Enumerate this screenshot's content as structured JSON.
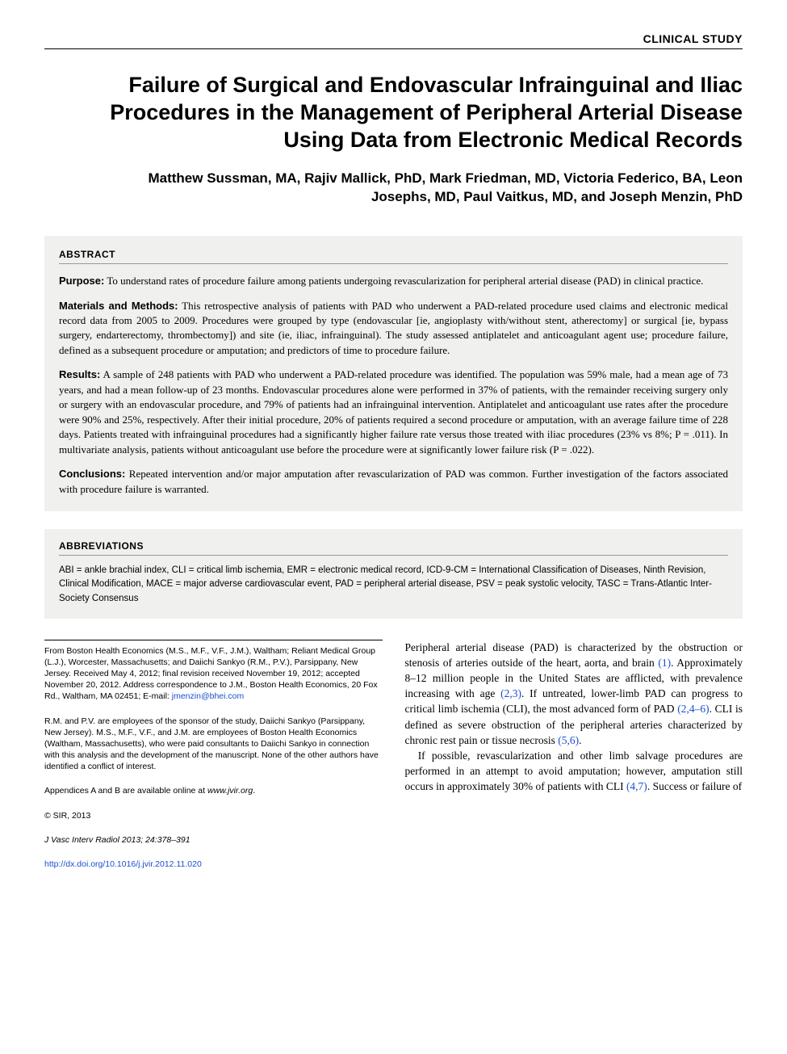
{
  "section_label": "CLINICAL STUDY",
  "title": "Failure of Surgical and Endovascular Infrainguinal and Iliac Procedures in the Management of Peripheral Arterial Disease Using Data from Electronic Medical Records",
  "authors": "Matthew Sussman, MA, Rajiv Mallick, PhD, Mark Friedman, MD, Victoria Federico, BA, Leon Josephs, MD, Paul Vaitkus, MD, and Joseph Menzin, PhD",
  "abstract": {
    "header": "ABSTRACT",
    "sections": [
      {
        "label": "Purpose:",
        "text": "To understand rates of procedure failure among patients undergoing revascularization for peripheral arterial disease (PAD) in clinical practice."
      },
      {
        "label": "Materials and Methods:",
        "text": "This retrospective analysis of patients with PAD who underwent a PAD-related procedure used claims and electronic medical record data from 2005 to 2009. Procedures were grouped by type (endovascular [ie, angioplasty with/without stent, atherectomy] or surgical [ie, bypass surgery, endarterectomy, thrombectomy]) and site (ie, iliac, infrainguinal). The study assessed antiplatelet and anticoagulant agent use; procedure failure, defined as a subsequent procedure or amputation; and predictors of time to procedure failure."
      },
      {
        "label": "Results:",
        "text": "A sample of 248 patients with PAD who underwent a PAD-related procedure was identified. The population was 59% male, had a mean age of 73 years, and had a mean follow-up of 23 months. Endovascular procedures alone were performed in 37% of patients, with the remainder receiving surgery only or surgery with an endovascular procedure, and 79% of patients had an infrainguinal intervention. Antiplatelet and anticoagulant use rates after the procedure were 90% and 25%, respectively. After their initial procedure, 20% of patients required a second procedure or amputation, with an average failure time of 228 days. Patients treated with infrainguinal procedures had a significantly higher failure rate versus those treated with iliac procedures (23% vs 8%; P = .011). In multivariate analysis, patients without anticoagulant use before the procedure were at significantly lower failure risk (P = .022)."
      },
      {
        "label": "Conclusions:",
        "text": "Repeated intervention and/or major amputation after revascularization of PAD was common. Further investigation of the factors associated with procedure failure is warranted."
      }
    ]
  },
  "abbreviations": {
    "header": "ABBREVIATIONS",
    "text": "ABI = ankle brachial index, CLI = critical limb ischemia, EMR = electronic medical record, ICD-9-CM = International Classification of Diseases, Ninth Revision, Clinical Modification, MACE = major adverse cardiovascular event, PAD = peripheral arterial disease, PSV = peak systolic velocity, TASC = Trans-Atlantic Inter-Society Consensus"
  },
  "footnotes": {
    "affiliation": "From Boston Health Economics (M.S., M.F., V.F., J.M.), Waltham; Reliant Medical Group (L.J.), Worcester, Massachusetts; and Daiichi Sankyo (R.M., P.V.), Parsippany, New Jersey. Received May 4, 2012; final revision received November 19, 2012; accepted November 20, 2012. Address correspondence to J.M., Boston Health Economics, 20 Fox Rd., Waltham, MA 02451; E-mail: ",
    "email": "jmenzin@bhei.com",
    "conflict": "R.M. and P.V. are employees of the sponsor of the study, Daiichi Sankyo (Parsippany, New Jersey). M.S., M.F., V.F., and J.M. are employees of Boston Health Economics (Waltham, Massachusetts), who were paid consultants to Daiichi Sankyo in connection with this analysis and the development of the manuscript. None of the other authors have identified a conflict of interest.",
    "appendix_prefix": "Appendices A and B are available online at ",
    "appendix_link": "www.jvir.org",
    "appendix_suffix": ".",
    "copyright": "© SIR, 2013",
    "citation": "J Vasc Interv Radiol 2013; 24:378–391",
    "doi": "http://dx.doi.org/10.1016/j.jvir.2012.11.020"
  },
  "body": {
    "p1_a": "Peripheral arterial disease (PAD) is characterized by the obstruction or stenosis of arteries outside of the heart, aorta, and brain ",
    "p1_ref1": "(1)",
    "p1_b": ". Approximately 8–12 million people in the United States are afflicted, with prevalence increasing with age ",
    "p1_ref2": "(2,3)",
    "p1_c": ". If untreated, lower-limb PAD can progress to critical limb ischemia (CLI), the most advanced form of PAD ",
    "p1_ref3": "(2,4–6)",
    "p1_d": ". CLI is defined as severe obstruction of the peripheral arteries characterized by chronic rest pain or tissue necrosis ",
    "p1_ref4": "(5,6)",
    "p1_e": ".",
    "p2_a": "If possible, revascularization and other limb salvage procedures are performed in an attempt to avoid amputation; however, amputation still occurs in approximately 30% of patients with CLI ",
    "p2_ref1": "(4,7)",
    "p2_b": ". Success or failure of"
  },
  "colors": {
    "link": "#1a4fce",
    "box_bg": "#f0f0ef"
  }
}
